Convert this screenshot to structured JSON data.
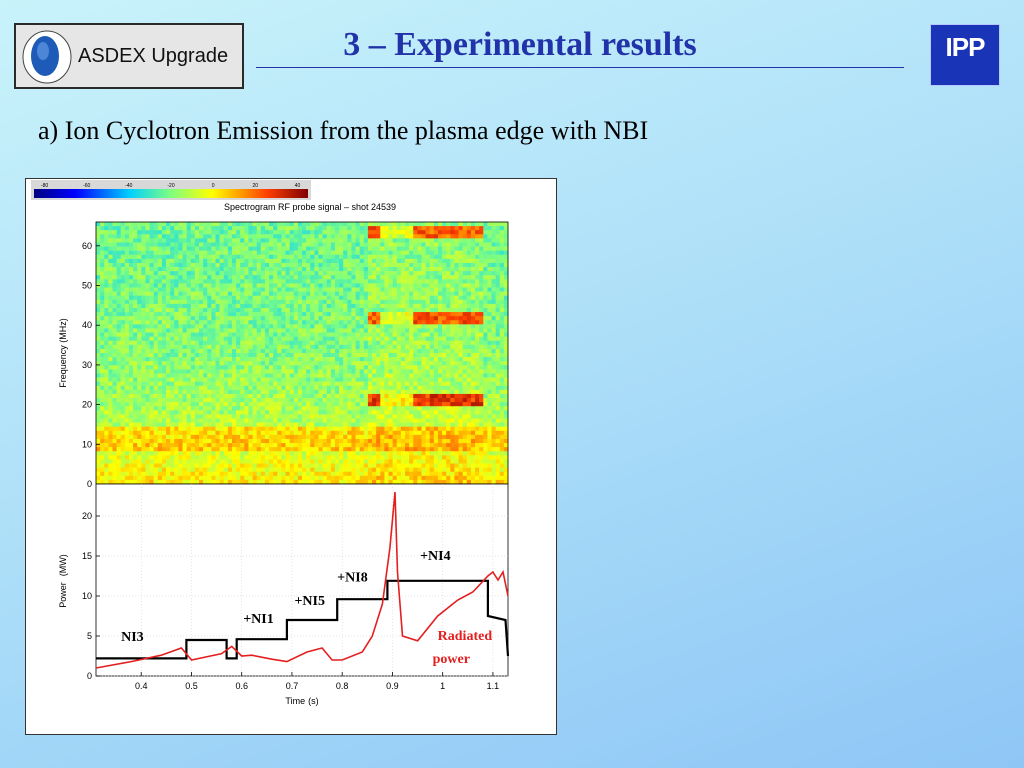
{
  "header": {
    "logo_text": "ASDEX Upgrade",
    "title": "3 – Experimental results",
    "ipp_logo": "IPP"
  },
  "subtitle": "a) Ion Cyclotron Emission from the plasma edge with NBI",
  "chart_data": [
    {
      "type": "heatmap",
      "title": "Spectrogram RF probe signal – shot 24539",
      "xlabel": "",
      "ylabel": "Frequency (MHz)",
      "xlim": [
        0.31,
        1.13
      ],
      "ylim": [
        0,
        66
      ],
      "yticks": [
        0,
        10,
        20,
        30,
        40,
        50,
        60
      ],
      "colorbar": {
        "ticks": [
          -80,
          -60,
          -40,
          -20,
          0,
          20,
          40
        ],
        "range": [
          -85,
          45
        ]
      },
      "emission_lines_MHz": [
        21,
        42,
        63
      ],
      "background_band_MHz": [
        8,
        14
      ],
      "active_time_s": [
        0.85,
        1.08
      ]
    },
    {
      "type": "line",
      "title": "",
      "xlabel": "Time",
      "xunit": "(s)",
      "ylabel": "Power",
      "yunit": "(MW)",
      "xlim": [
        0.31,
        1.13
      ],
      "ylim": [
        0,
        24
      ],
      "xticks": [
        0.4,
        0.5,
        0.6,
        0.7,
        0.8,
        0.9,
        1.0,
        1.1
      ],
      "yticks": [
        0,
        5,
        10,
        15,
        20
      ],
      "series": [
        {
          "name": "NBI",
          "color": "#000000",
          "x": [
            0.31,
            0.49,
            0.49,
            0.57,
            0.57,
            0.59,
            0.59,
            0.69,
            0.69,
            0.79,
            0.79,
            0.89,
            0.89,
            1.09,
            1.09,
            1.125,
            1.13
          ],
          "y": [
            2.2,
            2.2,
            4.5,
            4.5,
            2.2,
            2.2,
            4.6,
            4.6,
            7.0,
            7.0,
            9.6,
            9.6,
            11.9,
            11.9,
            7.5,
            7.0,
            2.5
          ]
        },
        {
          "name": "Radiated power",
          "color": "#e41f1f",
          "x": [
            0.31,
            0.38,
            0.44,
            0.48,
            0.5,
            0.56,
            0.58,
            0.6,
            0.62,
            0.66,
            0.69,
            0.73,
            0.76,
            0.78,
            0.8,
            0.84,
            0.86,
            0.88,
            0.895,
            0.905,
            0.91,
            0.92,
            0.95,
            0.99,
            1.03,
            1.06,
            1.09,
            1.1,
            1.11,
            1.12,
            1.13
          ],
          "y": [
            1.0,
            1.8,
            2.6,
            3.5,
            2.0,
            2.8,
            3.7,
            2.5,
            2.6,
            2.1,
            1.8,
            3.0,
            3.5,
            2.0,
            2.0,
            3.0,
            5.0,
            9.0,
            16.0,
            23.0,
            13.0,
            5.0,
            4.4,
            7.5,
            9.5,
            10.5,
            12.5,
            13.0,
            12.0,
            13.0,
            10.0
          ]
        }
      ],
      "annotations": [
        {
          "text": "NI3",
          "x": 0.36,
          "y": 4.4,
          "color": "#000000"
        },
        {
          "text": "+NI1",
          "x": 0.603,
          "y": 6.6,
          "color": "#000000"
        },
        {
          "text": "+NI5",
          "x": 0.705,
          "y": 8.9,
          "color": "#000000"
        },
        {
          "text": "+NI8",
          "x": 0.79,
          "y": 11.8,
          "color": "#000000"
        },
        {
          "text": "+NI4",
          "x": 0.955,
          "y": 14.5,
          "color": "#000000"
        },
        {
          "text": "Radiated",
          "x": 0.99,
          "y": 4.5,
          "color": "#e41f1f"
        },
        {
          "text": "power",
          "x": 0.98,
          "y": 1.6,
          "color": "#e41f1f"
        }
      ]
    }
  ]
}
